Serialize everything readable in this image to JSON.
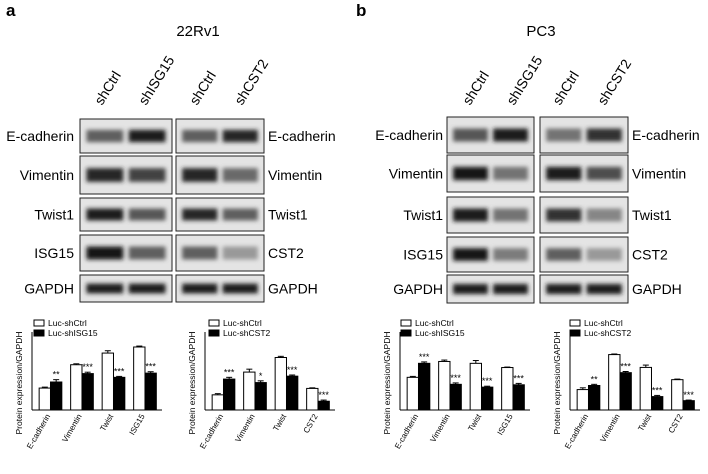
{
  "panels": [
    {
      "letter": "a",
      "title": "22Rv1",
      "blot_groups": [
        {
          "lanes": [
            "shCtrl",
            "shISG15"
          ],
          "labels": [
            "E-cadherin",
            "Vimentin",
            "Twist1",
            "ISG15",
            "GAPDH"
          ],
          "intensity": [
            [
              0.55,
              0.9
            ],
            [
              0.85,
              0.7
            ],
            [
              0.9,
              0.6
            ],
            [
              0.95,
              0.55
            ],
            [
              0.9,
              0.9
            ]
          ]
        },
        {
          "lanes": [
            "shCtrl",
            "shCST2"
          ],
          "labels": [
            "E-cadherin",
            "Vimentin",
            "Twist1",
            "CST2",
            "GAPDH"
          ],
          "intensity": [
            [
              0.55,
              0.85
            ],
            [
              0.85,
              0.5
            ],
            [
              0.85,
              0.55
            ],
            [
              0.55,
              0.25
            ],
            [
              0.9,
              0.9
            ]
          ]
        }
      ],
      "charts": [
        {
          "type": "bar",
          "ylabel": "Protein expression/GAPDH",
          "categories": [
            "E-cadherin",
            "Vimentin",
            "Twist",
            "ISG15"
          ],
          "series": [
            {
              "name": "Luc-shCtrl",
              "values": [
                0.47,
                0.97,
                1.22,
                1.35
              ],
              "errors": [
                0.02,
                0.02,
                0.05,
                0.02
              ]
            },
            {
              "name": "Luc-shISG15",
              "values": [
                0.6,
                0.78,
                0.7,
                0.79
              ],
              "errors": [
                0.05,
                0.03,
                0.02,
                0.03
              ]
            }
          ],
          "significance": [
            "**",
            "***",
            "***",
            "***"
          ],
          "ylim": [
            0,
            1.5
          ]
        },
        {
          "type": "bar",
          "ylabel": "Protein expression/GAPDH",
          "categories": [
            "E-cadherin",
            "Vimentin",
            "Twist",
            "CST2"
          ],
          "series": [
            {
              "name": "Luc-shCtrl",
              "values": [
                0.26,
                0.65,
                0.9,
                0.37
              ],
              "errors": [
                0.02,
                0.05,
                0.02,
                0.01
              ]
            },
            {
              "name": "Luc-shCST2",
              "values": [
                0.53,
                0.47,
                0.58,
                0.15
              ],
              "errors": [
                0.03,
                0.03,
                0.02,
                0.02
              ]
            }
          ],
          "significance": [
            "***",
            "*",
            "***",
            "***"
          ],
          "ylim": [
            0,
            1.2
          ]
        }
      ]
    },
    {
      "letter": "b",
      "title": "PC3",
      "blot_groups": [
        {
          "lanes": [
            "shCtrl",
            "shISG15"
          ],
          "labels": [
            "E-cadherin",
            "Vimentin",
            "Twist1",
            "ISG15",
            "GAPDH"
          ],
          "intensity": [
            [
              0.6,
              0.9
            ],
            [
              0.95,
              0.45
            ],
            [
              0.9,
              0.45
            ],
            [
              0.95,
              0.4
            ],
            [
              0.9,
              0.9
            ]
          ]
        },
        {
          "lanes": [
            "shCtrl",
            "shCST2"
          ],
          "labels": [
            "E-cadherin",
            "Vimentin",
            "Twist1",
            "CST2",
            "GAPDH"
          ],
          "intensity": [
            [
              0.45,
              0.8
            ],
            [
              0.9,
              0.65
            ],
            [
              0.8,
              0.35
            ],
            [
              0.55,
              0.25
            ],
            [
              0.9,
              0.9
            ]
          ]
        }
      ],
      "charts": [
        {
          "type": "bar",
          "ylabel": "Protein expression/GAPDH",
          "categories": [
            "E-cadherin",
            "Vimentin",
            "Twist",
            "ISG15"
          ],
          "series": [
            {
              "name": "Luc-shCtrl",
              "values": [
                0.7,
                1.04,
                1.0,
                0.91
              ],
              "errors": [
                0.02,
                0.03,
                0.06,
                0.01
              ]
            },
            {
              "name": "Luc-shISG15",
              "values": [
                1.0,
                0.55,
                0.49,
                0.54
              ],
              "errors": [
                0.03,
                0.03,
                0.02,
                0.03
              ]
            }
          ],
          "significance": [
            "***",
            "***",
            "***",
            "***"
          ],
          "ylim": [
            0,
            1.5
          ]
        },
        {
          "type": "bar",
          "ylabel": "Protein expression/GAPDH",
          "categories": [
            "E-cadherin",
            "Vimentin",
            "Twist",
            "CST2"
          ],
          "series": [
            {
              "name": "Luc-shCtrl",
              "values": [
                0.35,
                0.95,
                0.73,
                0.52
              ],
              "errors": [
                0.03,
                0.01,
                0.04,
                0.01
              ]
            },
            {
              "name": "Luc-shCST2",
              "values": [
                0.42,
                0.64,
                0.23,
                0.16
              ],
              "errors": [
                0.02,
                0.02,
                0.02,
                0.01
              ]
            }
          ],
          "significance": [
            "**",
            "***",
            "***",
            "***"
          ],
          "ylim": [
            0,
            1.2
          ]
        }
      ]
    }
  ]
}
